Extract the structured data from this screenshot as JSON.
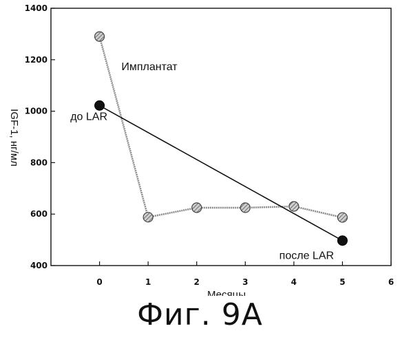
{
  "chart_data": {
    "type": "line",
    "title": "",
    "xlabel": "Месяцы",
    "ylabel": "IGF-1, нг/мл",
    "xlim": [
      -1,
      6
    ],
    "ylim": [
      400,
      1400
    ],
    "xticks": [
      "0",
      "1",
      "2",
      "3",
      "4",
      "5",
      "6"
    ],
    "yticks": [
      "400",
      "600",
      "800",
      "1000",
      "1200",
      "1400"
    ],
    "grid": false,
    "series": [
      {
        "name": "Имплантат",
        "style": "hatched-marker",
        "color": "#8a8a8a",
        "x": [
          0,
          1,
          2,
          3,
          4,
          5
        ],
        "y": [
          1290,
          588,
          625,
          625,
          630,
          587
        ]
      },
      {
        "name": "",
        "style": "solid-marker",
        "color": "#111111",
        "x": [
          0,
          5
        ],
        "y": [
          1022,
          497
        ]
      }
    ],
    "annotations": [
      {
        "text": "Имплантат",
        "x": 0.45,
        "y": 1160
      },
      {
        "text": "до LAR",
        "x": -0.6,
        "y": 965
      },
      {
        "text": "после LAR",
        "x": 3.7,
        "y": 425
      }
    ]
  },
  "caption": "Фиг. 9А"
}
